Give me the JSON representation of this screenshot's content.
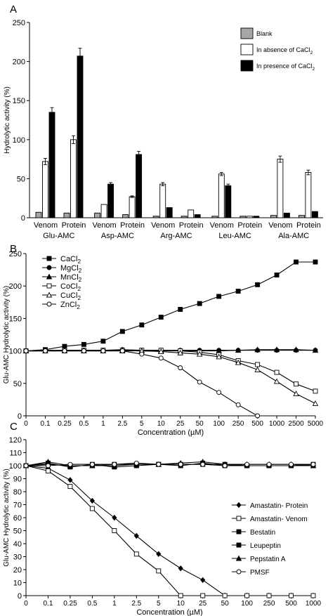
{
  "chart_data": [
    {
      "panel_label": "A",
      "type": "bar",
      "ylabel": "Hydrolytic activity (%)",
      "ylim": [
        0,
        250
      ],
      "yticks": [
        0,
        50,
        100,
        150,
        200,
        250
      ],
      "groups": [
        "Glu-AMC",
        "Asp-AMC",
        "Arg-AMC",
        "Leu-AMC",
        "Ala-AMC"
      ],
      "subgroups": [
        "Venom",
        "Protein"
      ],
      "legend_position": "top-right",
      "series": [
        {
          "name": "Blank",
          "color": "#a6a6a6",
          "values": [
            [
              7,
              6
            ],
            [
              6,
              4
            ],
            [
              2,
              2
            ],
            [
              2,
              2
            ],
            [
              3,
              3
            ]
          ],
          "errors": [
            [
              0,
              0
            ],
            [
              0,
              0
            ],
            [
              0,
              0
            ],
            [
              0,
              0
            ],
            [
              0,
              0
            ]
          ]
        },
        {
          "name": "In absence of CaCl2",
          "label_main": "In absence of CaCl",
          "label_sub": "2",
          "color": "#ffffff",
          "values": [
            [
              72,
              100
            ],
            [
              17,
              27
            ],
            [
              43,
              10
            ],
            [
              56,
              2
            ],
            [
              75,
              58
            ]
          ],
          "errors": [
            [
              4,
              5
            ],
            [
              0,
              1
            ],
            [
              2,
              0
            ],
            [
              2,
              0
            ],
            [
              4,
              3
            ]
          ]
        },
        {
          "name": "In presence of CaCl2",
          "label_main": "In presence of CaCl",
          "label_sub": "2",
          "color": "#000000",
          "values": [
            [
              135,
              207
            ],
            [
              43,
              81
            ],
            [
              13,
              4
            ],
            [
              41,
              2
            ],
            [
              6,
              8
            ]
          ],
          "errors": [
            [
              6,
              10
            ],
            [
              2,
              4
            ],
            [
              0,
              0
            ],
            [
              2,
              0
            ],
            [
              0,
              0
            ]
          ]
        }
      ]
    },
    {
      "panel_label": "B",
      "type": "line",
      "ylabel": "Glu-AMC Hydrolytic activity (%)",
      "xlabel": "Concentration (µM)",
      "ylim": [
        0,
        250
      ],
      "yticks": [
        0,
        50,
        100,
        150,
        200,
        250
      ],
      "x": [
        "0",
        "0.1",
        "0.25",
        "0.5",
        "1",
        "2.5",
        "5",
        "10",
        "25",
        "50",
        "100",
        "250",
        "500",
        "1000",
        "2500",
        "5000"
      ],
      "legend_position": "top-left",
      "series": [
        {
          "name": "CaCl2",
          "label_main": "CaCl",
          "label_sub": "2",
          "marker": "square-filled",
          "values": [
            100,
            102,
            107,
            110,
            115,
            130,
            140,
            152,
            164,
            173,
            184,
            192,
            202,
            217,
            237,
            237
          ]
        },
        {
          "name": "MgCl2",
          "label_main": "MgCl",
          "label_sub": "2",
          "marker": "circle-filled",
          "values": [
            100,
            101,
            101,
            101,
            101,
            102,
            101,
            101,
            101,
            101,
            101,
            101,
            101,
            101,
            101,
            101
          ]
        },
        {
          "name": "MnCl2",
          "label_main": "MnCl",
          "label_sub": "2",
          "marker": "triangle-filled",
          "values": [
            100,
            100,
            100,
            100,
            100,
            101,
            100,
            100,
            100,
            100,
            100,
            101,
            102,
            102,
            102,
            101
          ]
        },
        {
          "name": "CoCl2",
          "label_main": "CoCl",
          "label_sub": "2",
          "marker": "square-open",
          "values": [
            100,
            100,
            101,
            101,
            101,
            101,
            101,
            101,
            100,
            98,
            94,
            85,
            79,
            67,
            49,
            38
          ]
        },
        {
          "name": "CuCl2",
          "label_main": "CuCl",
          "label_sub": "2",
          "marker": "triangle-open",
          "values": [
            100,
            100,
            100,
            100,
            100,
            100,
            100,
            99,
            97,
            95,
            91,
            82,
            71,
            53,
            34,
            19
          ]
        },
        {
          "name": "ZnCl2",
          "label_main": "ZnCl",
          "label_sub": "2",
          "marker": "circle-open",
          "values": [
            100,
            100,
            100,
            100,
            100,
            100,
            95,
            89,
            74,
            52,
            36,
            17,
            0,
            null,
            null,
            null
          ]
        }
      ]
    },
    {
      "panel_label": "C",
      "type": "line",
      "ylabel": "Glu-AMC Hydrolytic activity (%)",
      "xlabel": "Concentration (µM)",
      "ylim": [
        0,
        120
      ],
      "yticks": [
        0,
        10,
        20,
        30,
        40,
        50,
        60,
        70,
        80,
        90,
        100,
        110,
        120
      ],
      "x": [
        "0",
        "0.1",
        "0.25",
        "0.5",
        "1",
        "2.5",
        "5",
        "10",
        "25",
        "50",
        "100",
        "250",
        "500",
        "1000"
      ],
      "legend_position": "right",
      "series": [
        {
          "name": "Amastatin- Protein",
          "marker": "diamond-filled",
          "values": [
            100,
            98,
            89,
            73,
            60,
            46,
            32,
            21,
            12,
            0,
            0,
            0,
            0,
            0
          ]
        },
        {
          "name": "Amastatin- Venom",
          "marker": "square-open",
          "values": [
            100,
            96,
            84,
            67,
            50,
            32,
            19,
            0,
            0,
            0,
            0,
            0,
            0,
            0
          ]
        },
        {
          "name": "Bestatin",
          "marker": "square-filled",
          "values": [
            100,
            101,
            100,
            100,
            101,
            101,
            101,
            101,
            101,
            101,
            100,
            100,
            100,
            100
          ]
        },
        {
          "name": "Leupeptin",
          "marker": "square-filled",
          "values": [
            100,
            102,
            99,
            101,
            99,
            100,
            101,
            100,
            102,
            100,
            100,
            100,
            100,
            101
          ]
        },
        {
          "name": "Pepstatin A",
          "marker": "triangle-filled",
          "values": [
            100,
            103,
            100,
            100,
            100,
            101,
            101,
            102,
            103,
            101,
            101,
            101,
            101,
            100
          ]
        },
        {
          "name": "PMSF",
          "marker": "circle-open",
          "values": [
            100,
            100,
            101,
            101,
            101,
            102,
            101,
            101,
            101,
            100,
            101,
            101,
            101,
            101
          ]
        }
      ]
    }
  ]
}
